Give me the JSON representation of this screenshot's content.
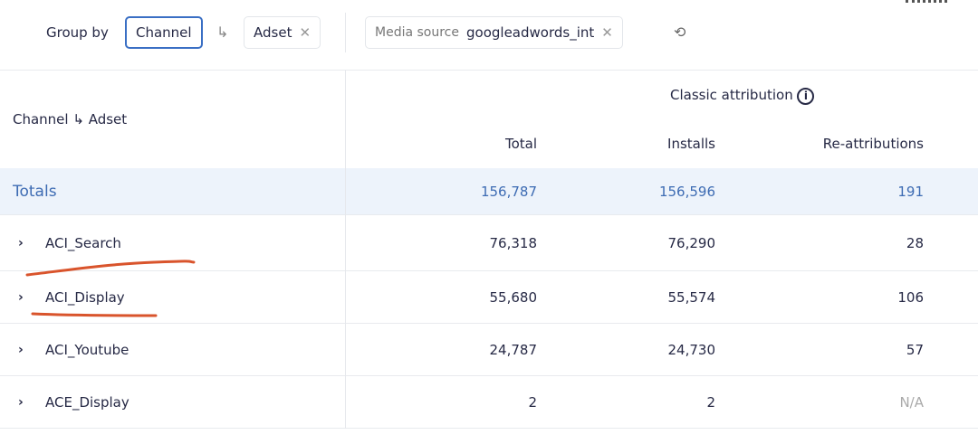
{
  "toolbar": {
    "group_by_label": "Group by",
    "group_chip": "Channel",
    "sub_chip": "Adset",
    "filter_label": "Media source",
    "filter_value": "googleadwords_int"
  },
  "header": {
    "row_dims": "Channel",
    "row_dims_sub": "Adset",
    "group_title": "Classic attribution",
    "columns": [
      "Total",
      "Installs",
      "Re-attributions"
    ]
  },
  "totals": {
    "label": "Totals",
    "values": [
      "156,787",
      "156,596",
      "191"
    ]
  },
  "rows": [
    {
      "name": "ACI_Search",
      "values": [
        "76,318",
        "76,290",
        "28"
      ]
    },
    {
      "name": "ACI_Display",
      "values": [
        "55,680",
        "55,574",
        "106"
      ]
    },
    {
      "name": "ACI_Youtube",
      "values": [
        "24,787",
        "24,730",
        "57"
      ]
    },
    {
      "name": "ACE_Display",
      "values": [
        "2",
        "2",
        "N/A"
      ]
    }
  ],
  "colors": {
    "accent": "#3a6fc4",
    "totals_bg": "#edf3fb",
    "annotation": "#d9542c"
  }
}
